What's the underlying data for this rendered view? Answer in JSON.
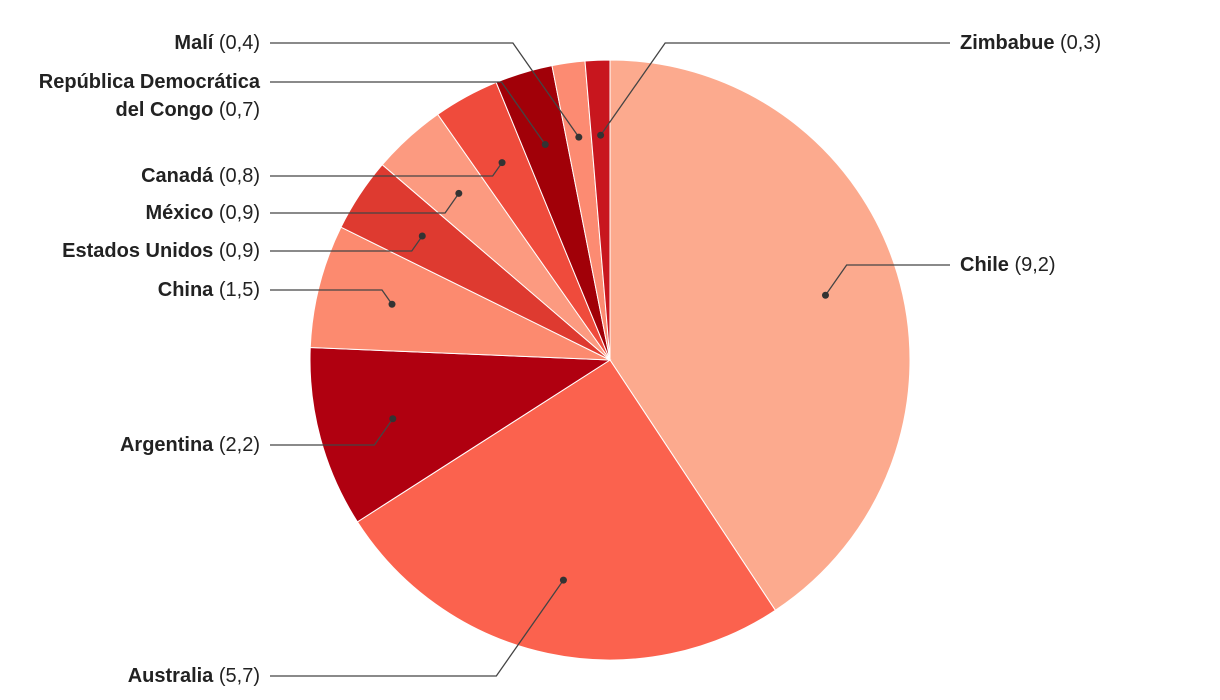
{
  "chart_data": {
    "type": "pie",
    "categories": [
      "Chile",
      "Australia",
      "Argentina",
      "China",
      "Estados Unidos",
      "México",
      "Canadá",
      "República Democrática del Congo",
      "Malí",
      "Zimbabue"
    ],
    "values": [
      9.2,
      5.7,
      2.2,
      1.5,
      0.9,
      0.9,
      0.8,
      0.7,
      0.4,
      0.3
    ],
    "value_labels": [
      "(9,2)",
      "(5,7)",
      "(2,2)",
      "(1,5)",
      "(0,9)",
      "(0,9)",
      "(0,8)",
      "(0,7)",
      "(0,4)",
      "(0,3)"
    ],
    "colors": [
      "#fcaa8e",
      "#fb624e",
      "#b00010",
      "#fc8a6f",
      "#de3a30",
      "#fc9a80",
      "#ef4b3c",
      "#a10008",
      "#fc8b72",
      "#c8161e"
    ]
  }
}
